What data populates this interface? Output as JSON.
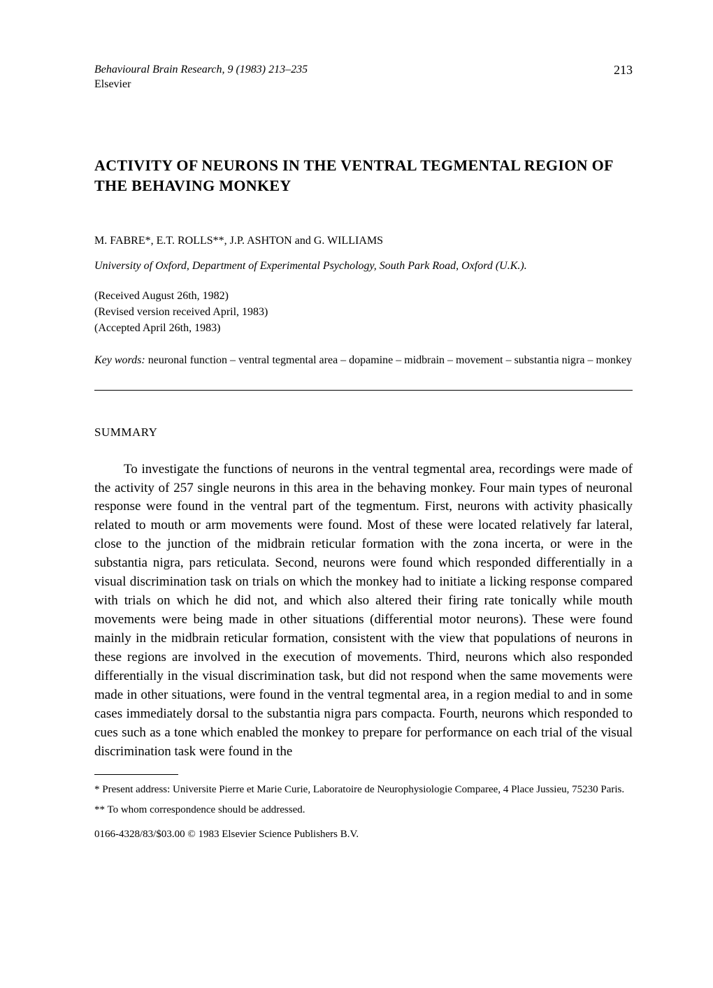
{
  "header": {
    "journal_line": "Behavioural Brain Research, 9 (1983) 213–235",
    "publisher": "Elsevier",
    "page_number": "213"
  },
  "title": "ACTIVITY OF NEURONS IN THE VENTRAL TEGMENTAL REGION OF THE BEHAVING MONKEY",
  "authors": "M. FABRE*, E.T. ROLLS**, J.P. ASHTON and G. WILLIAMS",
  "affiliation": "University of Oxford, Department of Experimental Psychology, South Park Road, Oxford (U.K.).",
  "dates": {
    "received": "(Received August 26th, 1982)",
    "revised": "(Revised version received April, 1983)",
    "accepted": "(Accepted April 26th, 1983)"
  },
  "keywords": {
    "label": "Key words:",
    "content": "neuronal function – ventral tegmental area – dopamine – midbrain – movement – substantia nigra – monkey"
  },
  "section_heading": "SUMMARY",
  "summary": "To investigate the functions of neurons in the ventral tegmental area, recordings were made of the activity of 257 single neurons in this area in the behaving monkey. Four main types of neuronal response were found in the ventral part of the tegmentum. First, neurons with activity phasically related to mouth or arm movements were found. Most of these were located relatively far lateral, close to the junction of the midbrain reticular formation with the zona incerta, or were in the substantia nigra, pars reticulata. Second, neurons were found which responded differentially in a visual discrimination task on trials on which the monkey had to initiate a licking response compared with trials on which he did not, and which also altered their firing rate tonically while mouth movements were being made in other situations (differential motor neurons). These were found mainly in the midbrain reticular formation, consistent with the view that populations of neurons in these regions are involved in the execution of movements. Third, neurons which also responded differentially in the visual discrimination task, but did not respond when the same movements were made in other situations, were found in the ventral tegmental area, in a region medial to and in some cases immediately dorsal to the substantia nigra pars compacta. Fourth, neurons which responded to cues such as a tone which enabled the monkey to prepare for performance on each trial of the visual discrimination task were found in the",
  "footnotes": {
    "fn1": "* Present address: Universite Pierre et Marie Curie, Laboratoire de Neurophysiologie Comparee, 4 Place Jussieu, 75230 Paris.",
    "fn2": "** To whom correspondence should be addressed."
  },
  "copyright": "0166-4328/83/$03.00 © 1983 Elsevier Science Publishers B.V."
}
